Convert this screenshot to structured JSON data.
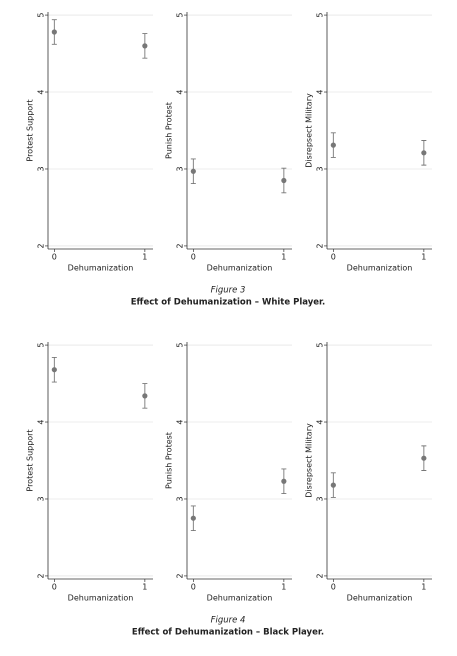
{
  "figures": [
    {
      "label": "Figure 3",
      "caption": "Effect of Dehumanization – White Player.",
      "charts": [
        {
          "type": "errorbar",
          "ylabel": "Protest Support",
          "xlabel": "Dehumanization",
          "x": [
            0,
            1
          ],
          "values": [
            4.78,
            4.6
          ],
          "errors": [
            0.16,
            0.16
          ],
          "xlim": [
            -0.07,
            1.09
          ],
          "xticks": [
            0,
            1
          ],
          "ylim": [
            1.96,
            5.04
          ],
          "yticks": [
            2,
            3,
            4,
            5
          ],
          "grid": true,
          "color": "#777777"
        },
        {
          "type": "errorbar",
          "ylabel": "Punish Protest",
          "xlabel": "Dehumanization",
          "x": [
            0,
            1
          ],
          "values": [
            2.97,
            2.85
          ],
          "errors": [
            0.16,
            0.16
          ],
          "xlim": [
            -0.07,
            1.09
          ],
          "xticks": [
            0,
            1
          ],
          "ylim": [
            1.96,
            5.04
          ],
          "yticks": [
            2,
            3,
            4,
            5
          ],
          "grid": true,
          "color": "#777777"
        },
        {
          "type": "errorbar",
          "ylabel": "Disrepsect Military",
          "xlabel": "Dehumanization",
          "x": [
            0,
            1
          ],
          "values": [
            3.31,
            3.21
          ],
          "errors": [
            0.16,
            0.16
          ],
          "xlim": [
            -0.07,
            1.09
          ],
          "xticks": [
            0,
            1
          ],
          "ylim": [
            1.96,
            5.04
          ],
          "yticks": [
            2,
            3,
            4,
            5
          ],
          "grid": true,
          "color": "#777777"
        }
      ]
    },
    {
      "label": "Figure 4",
      "caption": "Effect of Dehumanization – Black Player.",
      "charts": [
        {
          "type": "errorbar",
          "ylabel": "Protest Support",
          "xlabel": "Dehumanization",
          "x": [
            0,
            1
          ],
          "values": [
            4.68,
            4.34
          ],
          "errors": [
            0.16,
            0.16
          ],
          "xlim": [
            -0.07,
            1.09
          ],
          "xticks": [
            0,
            1
          ],
          "ylim": [
            1.96,
            5.04
          ],
          "yticks": [
            2,
            3,
            4,
            5
          ],
          "grid": true,
          "color": "#777777"
        },
        {
          "type": "errorbar",
          "ylabel": "Punish Protest",
          "xlabel": "Dehumanization",
          "x": [
            0,
            1
          ],
          "values": [
            2.75,
            3.23
          ],
          "errors": [
            0.16,
            0.16
          ],
          "xlim": [
            -0.07,
            1.09
          ],
          "xticks": [
            0,
            1
          ],
          "ylim": [
            1.96,
            5.04
          ],
          "yticks": [
            2,
            3,
            4,
            5
          ],
          "grid": true,
          "color": "#777777"
        },
        {
          "type": "errorbar",
          "ylabel": "Disrepsect Military",
          "xlabel": "Dehumanization",
          "x": [
            0,
            1
          ],
          "values": [
            3.18,
            3.53
          ],
          "errors": [
            0.16,
            0.16
          ],
          "xlim": [
            -0.07,
            1.09
          ],
          "xticks": [
            0,
            1
          ],
          "ylim": [
            1.96,
            5.04
          ],
          "yticks": [
            2,
            3,
            4,
            5
          ],
          "grid": true,
          "color": "#777777"
        }
      ]
    }
  ]
}
